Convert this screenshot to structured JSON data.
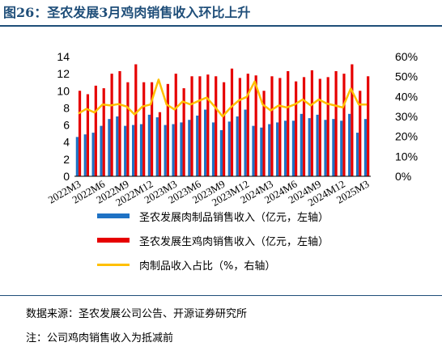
{
  "figure": {
    "title": "图26：圣农发展3月鸡肉销售收入环比上升",
    "source": "数据来源：圣农发展公司公告、开源证券研究所",
    "note": "注：公司鸡肉销售收入为抵减前"
  },
  "chart_data": {
    "type": "bar",
    "categories": [
      "2022M3",
      "2022M4",
      "2022M5",
      "2022M6",
      "2022M7",
      "2022M8",
      "2022M9",
      "2022M10",
      "2022M11",
      "2022M12",
      "2023M1",
      "2023M2",
      "2023M3",
      "2023M4",
      "2023M5",
      "2023M6",
      "2023M7",
      "2023M8",
      "2023M9",
      "2023M10",
      "2023M11",
      "2023M12",
      "2024M1",
      "2024M2",
      "2024M3",
      "2024M4",
      "2024M5",
      "2024M6",
      "2024M7",
      "2024M8",
      "2024M9",
      "2024M10",
      "2024M11",
      "2024M12",
      "2025M1",
      "2025M2",
      "2025M3"
    ],
    "x_tick_labels": [
      "2022M3",
      "2022M6",
      "2022M9",
      "2022M12",
      "2023M3",
      "2023M6",
      "2023M9",
      "2023M12",
      "2024M3",
      "2024M6",
      "2024M9",
      "2024M12",
      "2025M3"
    ],
    "y_left": {
      "min": 0,
      "max": 14,
      "step": 2
    },
    "y_right": {
      "min": 0,
      "max": 60,
      "step": 10,
      "unit": "%"
    },
    "series": [
      {
        "name": "圣农发展肉制品销售收入（亿元，左轴）",
        "kind": "bar",
        "axis": "left",
        "color": "#1f72c4",
        "values": [
          4.6,
          4.9,
          5.1,
          5.9,
          6.7,
          7.0,
          5.9,
          6.0,
          6.1,
          7.2,
          6.9,
          6.0,
          6.1,
          6.3,
          6.6,
          7.1,
          7.8,
          6.3,
          5.4,
          6.4,
          7.0,
          7.8,
          5.9,
          5.7,
          6.1,
          6.3,
          6.5,
          6.5,
          7.3,
          6.8,
          7.2,
          6.6,
          6.7,
          6.5,
          7.3,
          5.1,
          6.7
        ]
      },
      {
        "name": "圣农发展生鸡肉销售收入（亿元，左轴）",
        "kind": "bar",
        "axis": "left",
        "color": "#e60000",
        "values": [
          10.0,
          9.6,
          10.6,
          10.3,
          12.0,
          12.3,
          11.0,
          13.1,
          11.0,
          11.0,
          7.5,
          10.8,
          12.0,
          10.3,
          11.7,
          11.7,
          11.9,
          11.7,
          11.0,
          12.6,
          11.5,
          12.0,
          11.8,
          10.0,
          11.7,
          11.5,
          12.3,
          11.1,
          11.6,
          12.4,
          11.4,
          11.6,
          12.3,
          12.0,
          13.1,
          10.0,
          11.7
        ]
      },
      {
        "name": "肉制品收入占比（%，右轴）",
        "kind": "line",
        "axis": "right",
        "color": "#ffc000",
        "values": [
          31.5,
          33.8,
          32.0,
          36.0,
          35.5,
          36.2,
          35.0,
          31.0,
          35.0,
          36.0,
          48.5,
          36.0,
          33.5,
          37.5,
          36.0,
          37.8,
          39.5,
          35.0,
          30.0,
          34.5,
          38.0,
          39.8,
          47.5,
          36.0,
          33.0,
          35.5,
          34.5,
          36.0,
          38.5,
          35.5,
          38.5,
          36.5,
          35.5,
          34.5,
          44.0,
          36.0,
          36.0
        ]
      }
    ]
  }
}
